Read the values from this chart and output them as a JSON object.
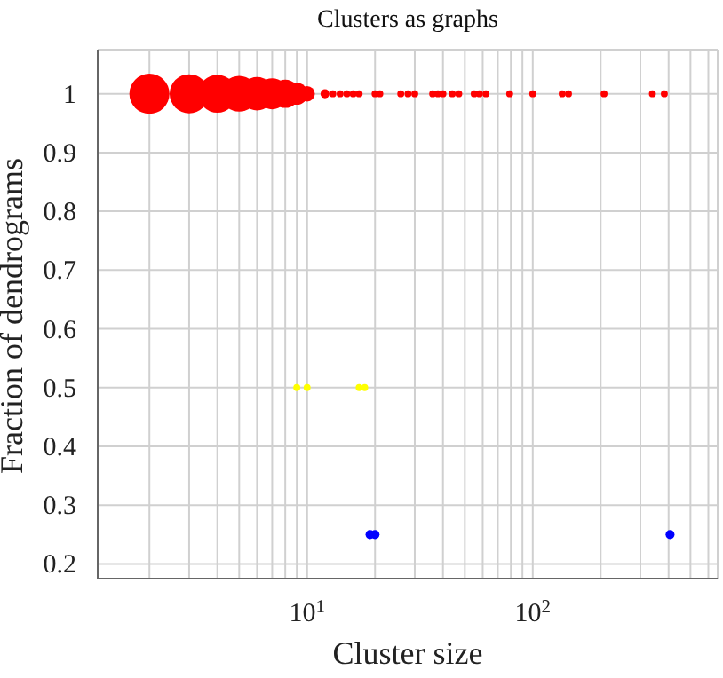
{
  "chart_data": {
    "type": "bubble",
    "title": "Clusters as graphs",
    "xlabel": "Cluster size",
    "ylabel": "Fraction of dendrograms",
    "log": "x",
    "grid": true,
    "xlim": [
      1.18,
      660
    ],
    "ylim": [
      0.175,
      1.075
    ],
    "xticks": [
      {
        "value": 2,
        "label": null
      },
      {
        "value": 3,
        "label": null
      },
      {
        "value": 4,
        "label": null
      },
      {
        "value": 5,
        "label": null
      },
      {
        "value": 6,
        "label": null
      },
      {
        "value": 7,
        "label": null
      },
      {
        "value": 8,
        "label": null
      },
      {
        "value": 9,
        "label": null
      },
      {
        "value": 10,
        "label": "10$^{1}$"
      },
      {
        "value": 20,
        "label": null
      },
      {
        "value": 30,
        "label": null
      },
      {
        "value": 40,
        "label": null
      },
      {
        "value": 50,
        "label": null
      },
      {
        "value": 60,
        "label": null
      },
      {
        "value": 70,
        "label": null
      },
      {
        "value": 80,
        "label": null
      },
      {
        "value": 90,
        "label": null
      },
      {
        "value": 100,
        "label": "10$^{2}$"
      },
      {
        "value": 200,
        "label": null
      },
      {
        "value": 300,
        "label": null
      },
      {
        "value": 400,
        "label": null
      },
      {
        "value": 500,
        "label": null
      },
      {
        "value": 600,
        "label": null
      }
    ],
    "yticks": [
      0.2,
      0.3,
      0.4,
      0.5,
      0.6,
      0.7,
      0.8,
      0.9,
      1
    ],
    "series": [
      {
        "color": "#ff0000",
        "x": [
          2,
          3,
          4,
          5,
          6,
          7,
          8,
          9,
          10,
          12,
          13,
          14,
          15,
          16,
          17,
          20,
          21,
          26,
          28,
          30,
          36,
          38,
          40,
          44,
          47,
          55,
          58,
          62,
          79,
          100,
          135,
          144,
          207,
          339,
          383
        ],
        "values": [
          1,
          1,
          1,
          1,
          1,
          1,
          1,
          1,
          1,
          1,
          1,
          1,
          1,
          1,
          1,
          1,
          1,
          1,
          1,
          1,
          1,
          1,
          1,
          1,
          1,
          1,
          1,
          1,
          1,
          1,
          1,
          1,
          1,
          1,
          1
        ],
        "sizes": [
          1,
          0.95,
          0.9,
          0.8,
          0.7,
          0.6,
          0.5,
          0.3,
          0.15,
          0.05,
          0.03,
          0.03,
          0.03,
          0.03,
          0.03,
          0.03,
          0.03,
          0.03,
          0.03,
          0.03,
          0.03,
          0.03,
          0.03,
          0.03,
          0.03,
          0.03,
          0.03,
          0.03,
          0.03,
          0.03,
          0.03,
          0.03,
          0.03,
          0.03,
          0.03
        ]
      },
      {
        "color": "#ffff00",
        "x": [
          9,
          10,
          17,
          18
        ],
        "values": [
          0.5,
          0.5,
          0.5,
          0.5
        ],
        "sizes": [
          0.03,
          0.03,
          0.03,
          0.03
        ]
      },
      {
        "color": "#0000ff",
        "x": [
          19,
          20,
          406
        ],
        "values": [
          0.25,
          0.25,
          0.25
        ],
        "sizes": [
          0.05,
          0.05,
          0.05
        ]
      }
    ]
  }
}
